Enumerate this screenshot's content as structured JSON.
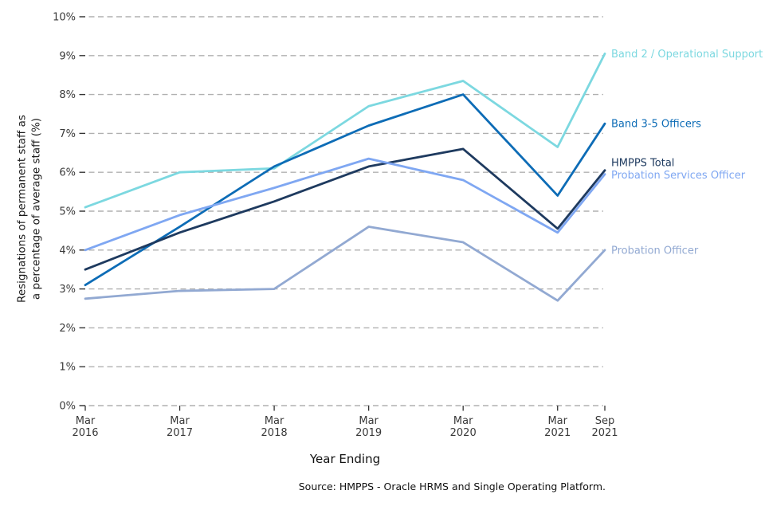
{
  "page": {
    "background": "#ffffff"
  },
  "chart_data": {
    "type": "line",
    "title": "",
    "xlabel": "Year Ending",
    "ylabel": "Resignations of permanent staff as\na percentage of average staff (%)",
    "source_note": "Source: HMPPS - Oracle HRMS and Single Operating Platform.",
    "grid": {
      "style": "dashed",
      "color": "#b0b0b0",
      "orientation": "horizontal"
    },
    "legend_position": "end-of-line-labels-right",
    "x_axis": {
      "categories": [
        {
          "line1": "Mar",
          "line2": "2016",
          "t": 0
        },
        {
          "line1": "Mar",
          "line2": "2017",
          "t": 1
        },
        {
          "line1": "Mar",
          "line2": "2018",
          "t": 2
        },
        {
          "line1": "Mar",
          "line2": "2019",
          "t": 3
        },
        {
          "line1": "Mar",
          "line2": "2020",
          "t": 4
        },
        {
          "line1": "Mar",
          "line2": "2021",
          "t": 5
        },
        {
          "line1": "Sep",
          "line2": "2021",
          "t": 5.5
        }
      ]
    },
    "y_axis": {
      "min": 0,
      "max": 10,
      "ticks": [
        {
          "value": 0,
          "label": "0%"
        },
        {
          "value": 1,
          "label": "1%"
        },
        {
          "value": 2,
          "label": "2%"
        },
        {
          "value": 3,
          "label": "3%"
        },
        {
          "value": 4,
          "label": "4%"
        },
        {
          "value": 5,
          "label": "5%"
        },
        {
          "value": 6,
          "label": "6%"
        },
        {
          "value": 7,
          "label": "7%"
        },
        {
          "value": 8,
          "label": "8%"
        },
        {
          "value": 9,
          "label": "9%"
        },
        {
          "value": 10,
          "label": "10%"
        }
      ]
    },
    "series": [
      {
        "name": "Band 2 / Operational Support",
        "color": "#7CD8E0",
        "values": [
          5.1,
          6.0,
          6.1,
          7.7,
          8.35,
          6.65,
          9.05
        ],
        "label_dy": 0
      },
      {
        "name": "Band 3-5 Officers",
        "color": "#0D6CB6",
        "values": [
          3.1,
          4.6,
          6.15,
          7.2,
          8.0,
          5.4,
          7.25
        ],
        "label_dy": 0
      },
      {
        "name": "HMPPS Total",
        "color": "#1E3A5F",
        "values": [
          3.5,
          4.45,
          5.25,
          6.15,
          6.6,
          4.55,
          6.05
        ],
        "label_dy": -10
      },
      {
        "name": "Probation Services Officer",
        "color": "#7FA7F2",
        "values": [
          4.0,
          4.9,
          5.6,
          6.35,
          5.8,
          4.45,
          5.95
        ],
        "label_dy": 1
      },
      {
        "name": "Probation Officer",
        "color": "#92A9D2",
        "values": [
          2.75,
          2.95,
          3.0,
          4.6,
          4.2,
          2.7,
          4.0
        ],
        "label_dy": 0
      }
    ]
  }
}
